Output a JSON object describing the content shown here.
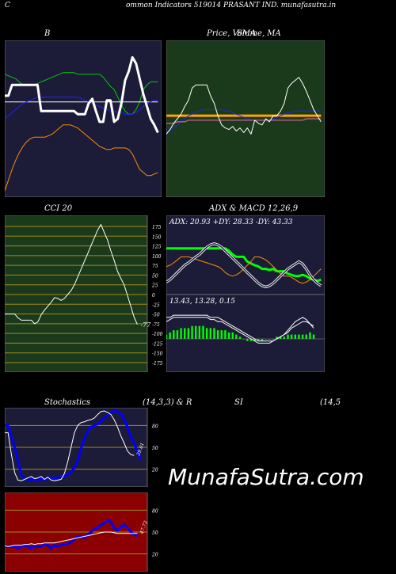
{
  "header": {
    "left_letter": "C",
    "title": "ommon  Indicators 519014  PRASANT IND. munafasutra.in"
  },
  "watermark": "MunafaSutra.com",
  "chart_data": [
    {
      "id": "bollinger",
      "type": "line",
      "title": "B",
      "background": "#1c1c38",
      "xlim": [
        0,
        43
      ],
      "ylim": [
        0,
        100
      ],
      "series": [
        {
          "color": "#00cc00",
          "values": [
            79,
            78,
            77,
            76,
            74,
            72,
            72,
            72,
            72,
            73,
            74,
            75,
            76,
            77,
            78,
            79,
            80,
            80,
            80,
            80,
            79,
            79,
            79,
            79,
            79,
            79,
            79,
            77,
            74,
            71,
            69,
            64,
            59,
            55,
            53,
            53,
            56,
            61,
            69,
            72,
            74,
            74,
            74
          ]
        },
        {
          "color": "#ffffff",
          "values": [
            61,
            61,
            61,
            61,
            61,
            61,
            61,
            61,
            61,
            61,
            61,
            61,
            61,
            61,
            61,
            61,
            61,
            61,
            61,
            61,
            61,
            61,
            61,
            61,
            61,
            61,
            61,
            61,
            61,
            61,
            61,
            61,
            61,
            61,
            61,
            61,
            61,
            61,
            61,
            61,
            61,
            61,
            61
          ]
        },
        {
          "color": "#2222ff",
          "values": [
            50,
            52,
            54,
            56,
            58,
            60,
            61,
            62,
            63,
            64,
            64,
            64,
            64,
            64,
            64,
            64,
            64,
            64,
            64,
            64,
            64,
            63,
            62,
            61,
            60,
            59,
            58,
            57,
            56,
            55,
            55,
            54,
            54,
            53,
            53,
            53,
            54,
            56,
            58,
            60,
            61,
            62,
            62
          ]
        },
        {
          "color": "#ff8c00",
          "values": [
            3,
            10,
            17,
            23,
            28,
            32,
            35,
            37,
            38,
            38,
            38,
            38,
            39,
            40,
            42,
            44,
            46,
            46,
            46,
            45,
            44,
            42,
            40,
            38,
            36,
            34,
            32,
            31,
            30,
            30,
            31,
            31,
            31,
            31,
            30,
            27,
            22,
            17,
            15,
            13,
            13,
            14,
            15
          ]
        },
        {
          "color": "#ffffff",
          "thick": true,
          "values": [
            65,
            65,
            72,
            72,
            72,
            72,
            72,
            72,
            72,
            72,
            55,
            55,
            55,
            55,
            55,
            55,
            55,
            55,
            55,
            55,
            53,
            53,
            53,
            60,
            63,
            55,
            48,
            48,
            62,
            62,
            48,
            50,
            60,
            75,
            81,
            90,
            86,
            76,
            66,
            58,
            50,
            46,
            41
          ]
        }
      ]
    },
    {
      "id": "price_ma",
      "type": "line",
      "title": "Price,  Volume,  MA",
      "overlay_title": "SMA",
      "background": "#1b3a1b",
      "xlim": [
        0,
        43
      ],
      "ylim": [
        0,
        100
      ],
      "series": [
        {
          "color": "#ffa500",
          "thick": true,
          "values": [
            52,
            52,
            52,
            52,
            52,
            52,
            52,
            52,
            52,
            52,
            52,
            52,
            52,
            52,
            52,
            52,
            52,
            52,
            52,
            52,
            52,
            52,
            52,
            52,
            52,
            52,
            52,
            52,
            52,
            52,
            52,
            52,
            52,
            52,
            52,
            52,
            52,
            52,
            52,
            52,
            52,
            52,
            52
          ]
        },
        {
          "color": "#2222ff",
          "values": [
            41,
            42,
            44,
            46,
            48,
            50,
            52,
            53,
            54,
            55,
            56,
            56,
            56,
            56,
            56,
            56,
            55,
            55,
            54,
            53,
            52,
            51,
            50,
            49,
            49,
            49,
            49,
            49,
            49,
            50,
            51,
            52,
            53,
            54,
            54,
            55,
            55,
            55,
            55,
            55,
            55,
            55,
            55
          ]
        },
        {
          "color": "#ff69b4",
          "values": [
            47,
            47,
            47,
            48,
            48,
            48,
            49,
            49,
            49,
            49,
            49,
            49,
            49,
            49,
            49,
            49,
            49,
            49,
            49,
            49,
            49,
            49,
            49,
            49,
            49,
            49,
            49,
            49,
            49,
            49,
            49,
            49,
            49,
            49,
            49,
            49,
            49,
            49,
            50,
            50,
            50,
            50,
            50
          ]
        },
        {
          "color": "#ffffff",
          "values": [
            40,
            43,
            47,
            50,
            53,
            58,
            62,
            70,
            72,
            72,
            72,
            72,
            65,
            60,
            52,
            46,
            44,
            43,
            45,
            42,
            44,
            41,
            44,
            40,
            49,
            47,
            46,
            50,
            48,
            52,
            52,
            55,
            60,
            70,
            73,
            75,
            77,
            73,
            68,
            62,
            56,
            52,
            48
          ]
        }
      ]
    },
    {
      "id": "cci",
      "type": "line",
      "title": "CCI 20",
      "background": "#1b3a1b",
      "grid_color": "#a08a1e",
      "ylim": [
        -175,
        175
      ],
      "xlim": [
        0,
        43
      ],
      "y_ticks": [
        175,
        150,
        125,
        100,
        75,
        50,
        25,
        0,
        -25,
        -50,
        -75,
        -100,
        -125,
        -150,
        -175
      ],
      "last_value_label": "-77",
      "series": [
        {
          "color": "#ffffff",
          "values": [
            -50,
            -50,
            -50,
            -50,
            -60,
            -66,
            -66,
            -66,
            -66,
            -75,
            -70,
            -52,
            -40,
            -30,
            -20,
            -8,
            -10,
            -15,
            -10,
            0,
            10,
            25,
            45,
            65,
            85,
            105,
            125,
            145,
            165,
            180,
            160,
            140,
            112,
            88,
            60,
            42,
            25,
            -2,
            -30,
            -58,
            -77
          ]
        }
      ]
    },
    {
      "id": "adx",
      "type": "line",
      "title": "ADX  & MACD 12,26,9",
      "label": "ADX: 20.93  +DY: 28.33  -DY: 43.33",
      "background": "#1c1c38",
      "xlim": [
        0,
        43
      ],
      "ylim": [
        0,
        100
      ],
      "series": [
        {
          "color": "#00ff00",
          "thick": true,
          "values": [
            74,
            74,
            74,
            74,
            74,
            74,
            74,
            74,
            74,
            74,
            74,
            74,
            74,
            74,
            74,
            74,
            74,
            70,
            64,
            60,
            60,
            60,
            52,
            49,
            46,
            44,
            40,
            40,
            38,
            40,
            36,
            36,
            36,
            32,
            30,
            28,
            28,
            30,
            28,
            24,
            22,
            20,
            22
          ]
        },
        {
          "color": "#ff8c00",
          "values": [
            44,
            46,
            50,
            55,
            60,
            60,
            60,
            58,
            56,
            54,
            52,
            50,
            48,
            46,
            44,
            40,
            34,
            30,
            28,
            30,
            34,
            40,
            46,
            52,
            60,
            60,
            58,
            55,
            50,
            44,
            38,
            32,
            28,
            28,
            26,
            22,
            18,
            16,
            18,
            22,
            28,
            34,
            40
          ]
        },
        {
          "color": "#ffffff",
          "double": true,
          "values": [
            18,
            22,
            28,
            34,
            40,
            46,
            50,
            55,
            60,
            64,
            70,
            76,
            80,
            82,
            80,
            76,
            70,
            64,
            58,
            52,
            46,
            40,
            34,
            28,
            22,
            16,
            12,
            10,
            12,
            16,
            22,
            28,
            34,
            40,
            44,
            48,
            52,
            48,
            40,
            30,
            22,
            16,
            12
          ]
        }
      ]
    },
    {
      "id": "macd",
      "type": "line",
      "label": "13.43,  13.28,  0.15",
      "background": "#1c1c38",
      "xlim": [
        0,
        43
      ],
      "ylim": [
        -14,
        14
      ],
      "bars": [
        2,
        3,
        4,
        4,
        5,
        5,
        5,
        6,
        6,
        6,
        6,
        5,
        5,
        5,
        4,
        4,
        4,
        3,
        3,
        2,
        1,
        0,
        -1,
        -1,
        -1,
        -1,
        -1,
        0,
        0,
        0,
        1,
        1,
        1,
        2,
        2,
        2,
        2,
        2,
        2,
        3,
        2
      ],
      "series": [
        {
          "color": "#ffffff",
          "values": [
            8,
            9,
            10,
            10,
            10,
            10,
            10,
            10,
            10,
            10,
            10,
            10,
            9,
            9,
            8,
            8,
            7,
            6,
            5,
            4,
            3,
            2,
            1,
            0,
            -1,
            -2,
            -2,
            -2,
            -2,
            -1,
            0,
            1,
            2,
            4,
            6,
            8,
            9,
            10,
            9,
            7,
            5
          ]
        },
        {
          "color": "#ffffff",
          "values": [
            10,
            10,
            11,
            11,
            11,
            11,
            11,
            11,
            11,
            11,
            11,
            11,
            10,
            10,
            10,
            9,
            8,
            7,
            6,
            5,
            4,
            3,
            2,
            1,
            0,
            -1,
            -1,
            -1,
            -1,
            -1,
            0,
            1,
            2,
            3,
            5,
            6,
            7,
            8,
            8,
            7,
            6
          ]
        }
      ]
    },
    {
      "id": "stochastics",
      "type": "line",
      "title": "Stochastics",
      "title_params": "(14,3,3) & R",
      "background": "#1c1c38",
      "grid_color": "#a08a1e",
      "ylim": [
        0,
        100
      ],
      "xlim": [
        0,
        43
      ],
      "y_ticks": [
        80,
        50,
        20
      ],
      "last_value_label": "39.01",
      "series": [
        {
          "color": "#0000ff",
          "thick": true,
          "values": [
            80,
            80,
            65,
            50,
            32,
            12,
            7,
            5,
            6,
            6,
            5,
            7,
            6,
            7,
            9,
            8,
            8,
            10,
            11,
            12,
            16,
            22,
            32,
            48,
            62,
            72,
            78,
            80,
            82,
            86,
            90,
            94,
            98,
            100,
            99,
            96,
            88,
            78,
            65,
            55,
            45,
            33
          ]
        },
        {
          "color": "#ffffff",
          "values": [
            70,
            70,
            40,
            15,
            5,
            4,
            6,
            8,
            10,
            7,
            8,
            10,
            6,
            9,
            5,
            4,
            5,
            6,
            14,
            30,
            50,
            70,
            80,
            84,
            85,
            87,
            88,
            90,
            95,
            99,
            100,
            98,
            95,
            88,
            78,
            66,
            56,
            45,
            40,
            39
          ]
        }
      ]
    },
    {
      "id": "rsi",
      "type": "line",
      "title": "SI",
      "title_params": "(14,5",
      "background": "#8b0000",
      "grid_color": "#a08a1e",
      "ylim": [
        0,
        100
      ],
      "xlim": [
        0,
        43
      ],
      "y_ticks": [
        80,
        50,
        20
      ],
      "last_value_label": "47.73",
      "series": [
        {
          "color": "#0000ff",
          "thick": true,
          "values": [
            30,
            30,
            30,
            30,
            28,
            30,
            32,
            30,
            28,
            30,
            30,
            30,
            33,
            32,
            28,
            32,
            30,
            32,
            33,
            34,
            36,
            40,
            44,
            44,
            42,
            46,
            50,
            54,
            56,
            60,
            62,
            66,
            64,
            55,
            52,
            57,
            60,
            56,
            50,
            47,
            45
          ]
        },
        {
          "color": "#ffffff",
          "values": [
            31,
            30,
            31,
            32,
            32,
            32,
            33,
            33,
            34,
            33,
            34,
            34,
            35,
            35,
            35,
            35,
            36,
            37,
            38,
            39,
            40,
            41,
            42,
            43,
            44,
            45,
            46,
            47,
            48,
            49,
            50,
            50,
            50,
            49,
            48,
            48,
            48,
            48,
            48,
            48,
            48
          ]
        }
      ]
    }
  ]
}
